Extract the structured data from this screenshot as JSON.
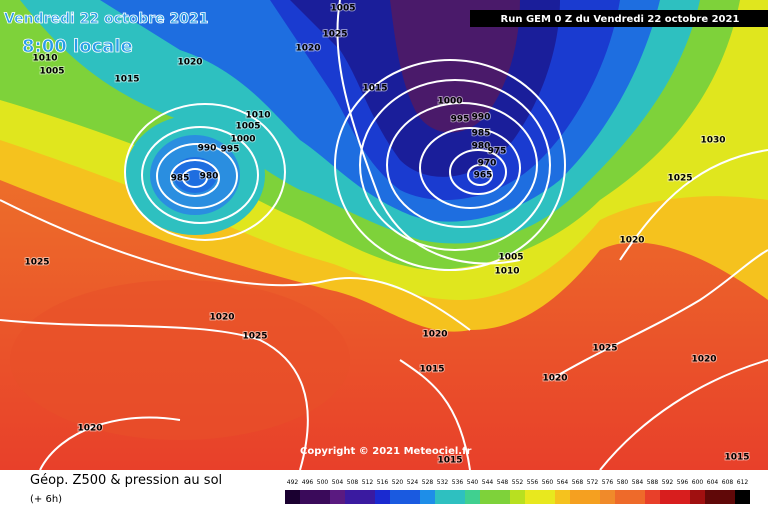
{
  "header": {
    "date": "Vendredi 22 octobre 2021",
    "time": "8:00 locale",
    "run": "Run GEM 0 Z du Vendredi 22 octobre 2021"
  },
  "copyright": "Copyright © 2021 Meteociel.fr",
  "footer": {
    "title": "Géop. Z500 & pression au sol",
    "step": "(+ 6h)"
  },
  "legend": {
    "values": [
      492,
      496,
      500,
      504,
      508,
      512,
      516,
      520,
      524,
      528,
      532,
      536,
      540,
      544,
      548,
      552,
      556,
      560,
      564,
      568,
      572,
      576,
      580,
      584,
      588,
      592,
      596,
      600,
      604,
      608,
      612
    ]
  },
  "isobar_labels": [
    "1010",
    "1005",
    "1015",
    "1020",
    "1020",
    "1025",
    "1015",
    "1005",
    "1010",
    "1005",
    "1000",
    "995",
    "990",
    "985",
    "980",
    "1000",
    "995",
    "990",
    "985",
    "980",
    "975",
    "970",
    "965",
    "1005",
    "1010",
    "1030",
    "1025",
    "1020",
    "1025",
    "1020",
    "1025",
    "1020",
    "1015",
    "1020",
    "1025",
    "1020",
    "1020",
    "1015",
    "1015"
  ]
}
